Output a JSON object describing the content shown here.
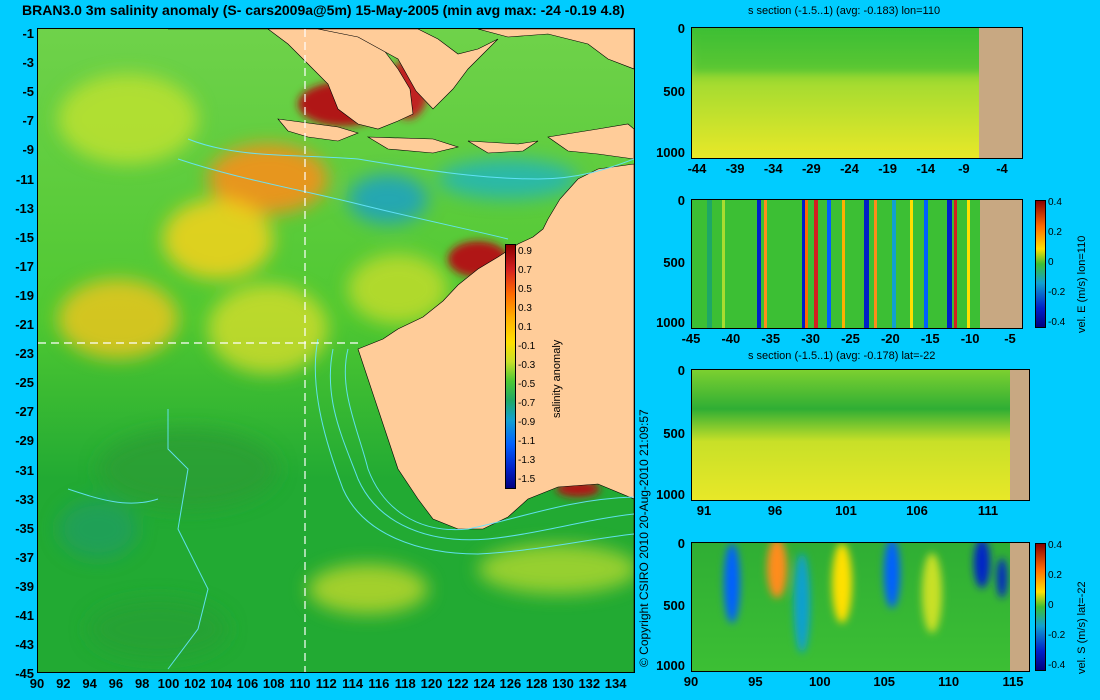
{
  "title": "BRAN3.0 3m salinity anomaly (S- cars2009a@5m) 15-May-2005 (min avg max: -24 -0.19 4.8)",
  "copyright": "© Copyright CSIRO 2010   20-Aug-2010 21:09:57",
  "colors": {
    "background": "#00ccff",
    "land": "#ffcc99",
    "land_section": "#c8a882",
    "contour": "#66e6ff"
  },
  "map": {
    "lat_labels": [
      "-1",
      "-3",
      "-5",
      "-7",
      "-9",
      "-11",
      "-13",
      "-15",
      "-17",
      "-19",
      "-21",
      "-23",
      "-25",
      "-27",
      "-29",
      "-31",
      "-33",
      "-35",
      "-37",
      "-39",
      "-41",
      "-43",
      "-45"
    ],
    "lon_labels": [
      "90",
      "92",
      "94",
      "96",
      "98",
      "100",
      "102",
      "104",
      "106",
      "108",
      "110",
      "112",
      "114",
      "116",
      "118",
      "120",
      "122",
      "124",
      "126",
      "128",
      "130",
      "132",
      "134"
    ],
    "section_lon": 110,
    "section_lat": -22
  },
  "colorbar": {
    "label": "salinity anomaly",
    "ticks": [
      "0.9",
      "0.7",
      "0.5",
      "0.3",
      "0.1",
      "-0.1",
      "-0.3",
      "-0.5",
      "-0.7",
      "-0.9",
      "-1.1",
      "-1.3",
      "-1.5"
    ]
  },
  "panels": [
    {
      "title": "s section (-1.5..1) (avg: -0.183) lon=110",
      "y_ticks": [
        "0",
        "500",
        "1000"
      ],
      "x_ticks": [
        "-44",
        "-39",
        "-34",
        "-29",
        "-24",
        "-19",
        "-14",
        "-9",
        "-4"
      ],
      "side_label": "",
      "colorbar_ticks": []
    },
    {
      "title": "",
      "y_ticks": [
        "0",
        "500",
        "1000"
      ],
      "x_ticks": [
        "-45",
        "-40",
        "-35",
        "-30",
        "-25",
        "-20",
        "-15",
        "-10",
        "-5"
      ],
      "side_label": "vel. E (m/s) lon=110",
      "colorbar_ticks": [
        "0.4",
        "0.2",
        "0",
        "-0.2",
        "-0.4"
      ]
    },
    {
      "title": "s section (-1.5..1) (avg: -0.178) lat=-22",
      "y_ticks": [
        "0",
        "500",
        "1000"
      ],
      "x_ticks": [
        "91",
        "96",
        "101",
        "106",
        "111"
      ],
      "side_label": "",
      "colorbar_ticks": []
    },
    {
      "title": "",
      "y_ticks": [
        "0",
        "500",
        "1000"
      ],
      "x_ticks": [
        "90",
        "95",
        "100",
        "105",
        "110",
        "115"
      ],
      "side_label": "vel. S (m/s) lat=-22",
      "colorbar_ticks": [
        "0.4",
        "0.2",
        "0",
        "-0.2",
        "-0.4"
      ]
    }
  ]
}
